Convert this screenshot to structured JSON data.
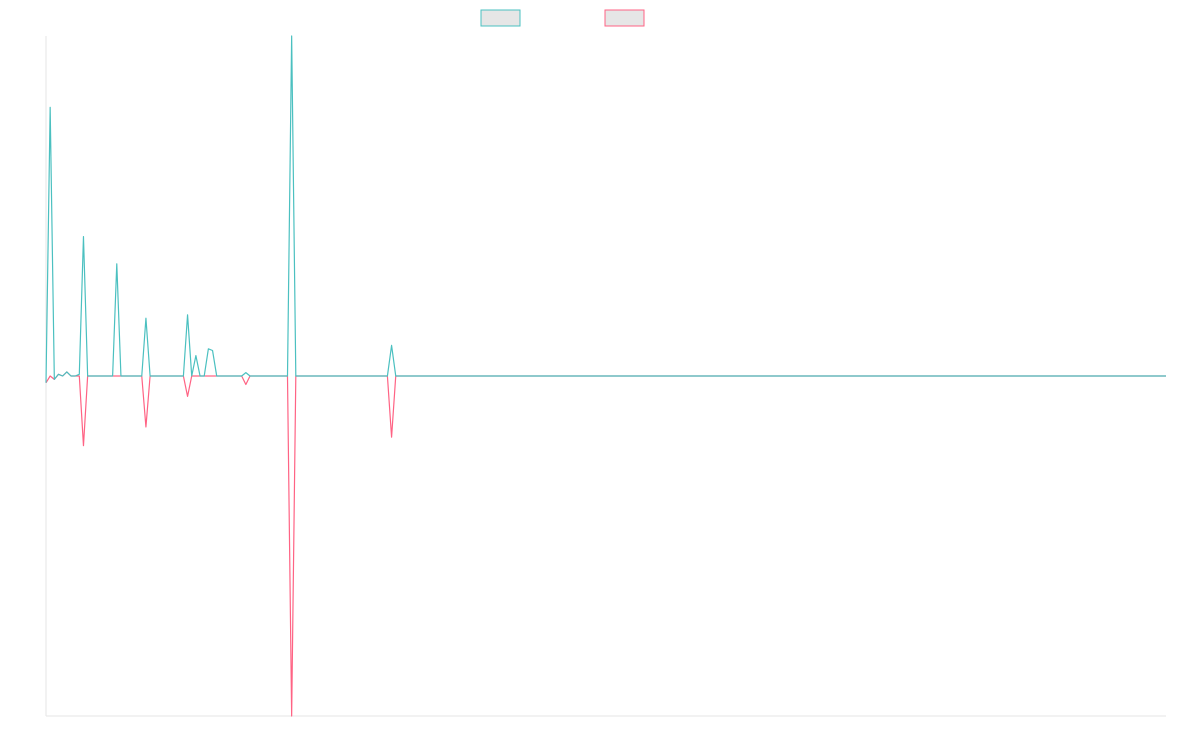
{
  "colors": {
    "series_a": "#4bc0c0",
    "series_b": "#ff6384",
    "legend_fill": "#e6e6e6",
    "axis": "#e5e5e5"
  },
  "chart_data": {
    "type": "line",
    "title": "",
    "xlabel": "",
    "ylabel": "",
    "grid": false,
    "legend": "top-center",
    "x_count": 270,
    "ylim": [
      -1,
      1
    ],
    "series": [
      {
        "color": "#4bc0c0",
        "points": [
          [
            0,
            -0.02
          ],
          [
            1,
            0.79
          ],
          [
            2,
            -0.01
          ],
          [
            3,
            0.005
          ],
          [
            4,
            0.0
          ],
          [
            5,
            0.012
          ],
          [
            6,
            0.0
          ],
          [
            7,
            0.0
          ],
          [
            8,
            0.005
          ],
          [
            9,
            0.41
          ],
          [
            10,
            0.0
          ],
          [
            14,
            0.0
          ],
          [
            15,
            0.0
          ],
          [
            16,
            0.0
          ],
          [
            17,
            0.33
          ],
          [
            18,
            0.0
          ],
          [
            19,
            0.0
          ],
          [
            20,
            0.0
          ],
          [
            21,
            0.0
          ],
          [
            22,
            0.0
          ],
          [
            23,
            0.0
          ],
          [
            24,
            0.17
          ],
          [
            25,
            0.0
          ],
          [
            26,
            0.0
          ],
          [
            33,
            0.0
          ],
          [
            34,
            0.18
          ],
          [
            35,
            0.0
          ],
          [
            36,
            0.06
          ],
          [
            37,
            0.0
          ],
          [
            38,
            0.0
          ],
          [
            39,
            0.08
          ],
          [
            40,
            0.075
          ],
          [
            41,
            0.0
          ],
          [
            42,
            0.0
          ],
          [
            43,
            0.0
          ],
          [
            44,
            0.0
          ],
          [
            45,
            0.0
          ],
          [
            46,
            0.0
          ],
          [
            47,
            0.0
          ],
          [
            48,
            0.01
          ],
          [
            49,
            0.0
          ],
          [
            58,
            0.0
          ],
          [
            59,
            1.0
          ],
          [
            60,
            0.0
          ],
          [
            61,
            0.0
          ],
          [
            62,
            0.0
          ],
          [
            63,
            0.0
          ],
          [
            64,
            0.0
          ],
          [
            81,
            0.0
          ],
          [
            82,
            0.0
          ],
          [
            83,
            0.09
          ],
          [
            84,
            0.0
          ],
          [
            85,
            0.0
          ],
          [
            269,
            0.0
          ]
        ]
      },
      {
        "color": "#ff6384",
        "points": [
          [
            0,
            -0.02
          ],
          [
            1,
            0.0
          ],
          [
            2,
            -0.01
          ],
          [
            3,
            0.005
          ],
          [
            4,
            0.0
          ],
          [
            5,
            0.012
          ],
          [
            6,
            0.0
          ],
          [
            7,
            0.0
          ],
          [
            8,
            0.0
          ],
          [
            9,
            -0.205
          ],
          [
            10,
            0.0
          ],
          [
            14,
            0.0
          ],
          [
            15,
            0.0
          ],
          [
            16,
            0.0
          ],
          [
            17,
            0.0
          ],
          [
            18,
            0.0
          ],
          [
            19,
            0.0
          ],
          [
            20,
            0.0
          ],
          [
            21,
            0.0
          ],
          [
            22,
            0.0
          ],
          [
            23,
            0.0
          ],
          [
            24,
            -0.15
          ],
          [
            25,
            0.0
          ],
          [
            26,
            0.0
          ],
          [
            33,
            0.0
          ],
          [
            34,
            -0.06
          ],
          [
            35,
            0.0
          ],
          [
            36,
            0.0
          ],
          [
            37,
            0.0
          ],
          [
            38,
            0.0
          ],
          [
            39,
            0.0
          ],
          [
            40,
            0.0
          ],
          [
            41,
            0.0
          ],
          [
            42,
            0.0
          ],
          [
            43,
            0.0
          ],
          [
            44,
            0.0
          ],
          [
            45,
            0.0
          ],
          [
            46,
            0.0
          ],
          [
            47,
            0.0
          ],
          [
            48,
            -0.025
          ],
          [
            49,
            0.0
          ],
          [
            58,
            0.0
          ],
          [
            59,
            -1.0
          ],
          [
            60,
            0.0
          ],
          [
            61,
            0.0
          ],
          [
            62,
            0.0
          ],
          [
            63,
            0.0
          ],
          [
            64,
            0.0
          ],
          [
            81,
            0.0
          ],
          [
            82,
            0.0
          ],
          [
            83,
            -0.18
          ],
          [
            84,
            0.0
          ],
          [
            85,
            0.0
          ],
          [
            269,
            0.0
          ]
        ]
      }
    ]
  }
}
